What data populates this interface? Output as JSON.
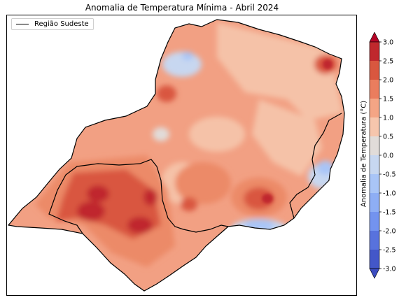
{
  "title": "Anomalia de Temperatura Mínima - Abril 2024",
  "legend": {
    "label": "Região Sudeste"
  },
  "colorbar": {
    "label": "Anomalia de Temperatura (°C)",
    "ticks": [
      "3.0",
      "2.5",
      "2.0",
      "1.5",
      "1.0",
      "0.5",
      "0.0",
      "-0.5",
      "-1.0",
      "-1.5",
      "-2.0",
      "-2.5",
      "-3.0"
    ],
    "colors": [
      "#c0282d",
      "#d9573f",
      "#ea7d5e",
      "#f4a585",
      "#f6c6ad",
      "#e1dcd9",
      "#c7d7f0",
      "#a9c5f7",
      "#8eaef5",
      "#7393ef",
      "#5872dd",
      "#4357c9"
    ],
    "over_color": "#b40426",
    "under_color": "#3b4cc0"
  },
  "colors": {
    "base": "#f2a083",
    "warm_light": "#f5c2a8",
    "warm_mid": "#ec8a68",
    "warm_strong": "#d9573f",
    "warm_max": "#c0282d",
    "cool_light": "#c7d7f0",
    "cool_mid": "#a9c5f7",
    "neutral": "#e1dcd9"
  }
}
